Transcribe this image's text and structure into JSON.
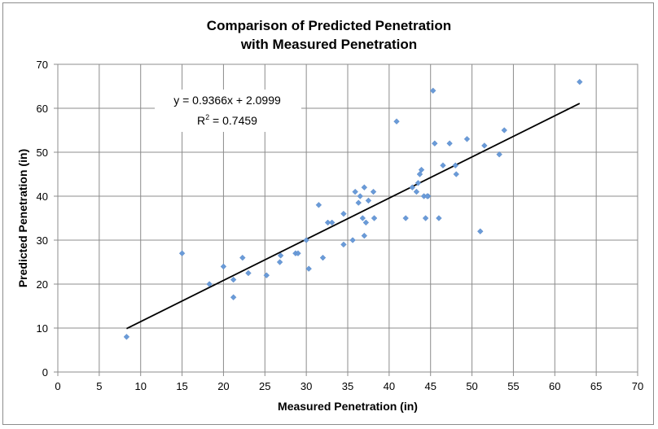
{
  "chart_data": {
    "type": "scatter",
    "title": [
      "Comparison of Predicted Penetration",
      "with Measured Penetration"
    ],
    "xlabel": "Measured Penetration (in)",
    "ylabel": "Predicted Penetration (in)",
    "xlim": [
      0,
      70
    ],
    "ylim": [
      0,
      70
    ],
    "xticks": [
      0,
      5,
      10,
      15,
      20,
      25,
      30,
      35,
      40,
      45,
      50,
      55,
      60,
      65,
      70
    ],
    "yticks": [
      0,
      10,
      20,
      30,
      40,
      50,
      60,
      70
    ],
    "grid": true,
    "marker_color": "#6a9bd8",
    "trendline_color": "#000000",
    "trendline": {
      "slope": 0.9366,
      "intercept": 2.0999,
      "x_range": [
        8.3,
        63
      ],
      "equation_label": "y = 0.9366x + 2.0999",
      "r2_prefix": "R",
      "r2_suffix": " = 0.7459"
    },
    "points": [
      [
        8.3,
        8
      ],
      [
        15,
        27
      ],
      [
        18.3,
        20
      ],
      [
        20,
        24
      ],
      [
        21.2,
        21
      ],
      [
        21.2,
        17
      ],
      [
        22.3,
        26
      ],
      [
        23,
        22.5
      ],
      [
        25.2,
        22
      ],
      [
        26.8,
        25
      ],
      [
        26.9,
        26.5
      ],
      [
        28.7,
        27
      ],
      [
        29,
        27
      ],
      [
        30,
        30
      ],
      [
        30.3,
        23.5
      ],
      [
        31.5,
        38
      ],
      [
        32,
        26
      ],
      [
        32.6,
        34
      ],
      [
        33.1,
        34
      ],
      [
        34.5,
        36
      ],
      [
        34.5,
        29
      ],
      [
        35.6,
        30
      ],
      [
        35.9,
        41
      ],
      [
        36.3,
        38.5
      ],
      [
        36.5,
        40
      ],
      [
        36.8,
        35
      ],
      [
        37,
        42
      ],
      [
        37,
        31
      ],
      [
        37.2,
        34
      ],
      [
        37.5,
        39
      ],
      [
        38.1,
        41
      ],
      [
        38.2,
        35
      ],
      [
        40.9,
        57
      ],
      [
        42,
        35
      ],
      [
        42.8,
        42
      ],
      [
        43.3,
        41
      ],
      [
        43.5,
        43
      ],
      [
        43.7,
        45
      ],
      [
        43.9,
        46
      ],
      [
        44.2,
        40
      ],
      [
        44.4,
        35
      ],
      [
        44.7,
        40
      ],
      [
        44.6,
        40
      ],
      [
        45.3,
        64
      ],
      [
        45.5,
        52
      ],
      [
        46,
        35
      ],
      [
        46.5,
        47
      ],
      [
        47.3,
        52
      ],
      [
        48,
        47
      ],
      [
        48.1,
        45
      ],
      [
        49.4,
        53
      ],
      [
        51,
        32
      ],
      [
        51.5,
        51.5
      ],
      [
        53.3,
        49.5
      ],
      [
        53.9,
        55
      ],
      [
        63,
        66
      ]
    ]
  }
}
